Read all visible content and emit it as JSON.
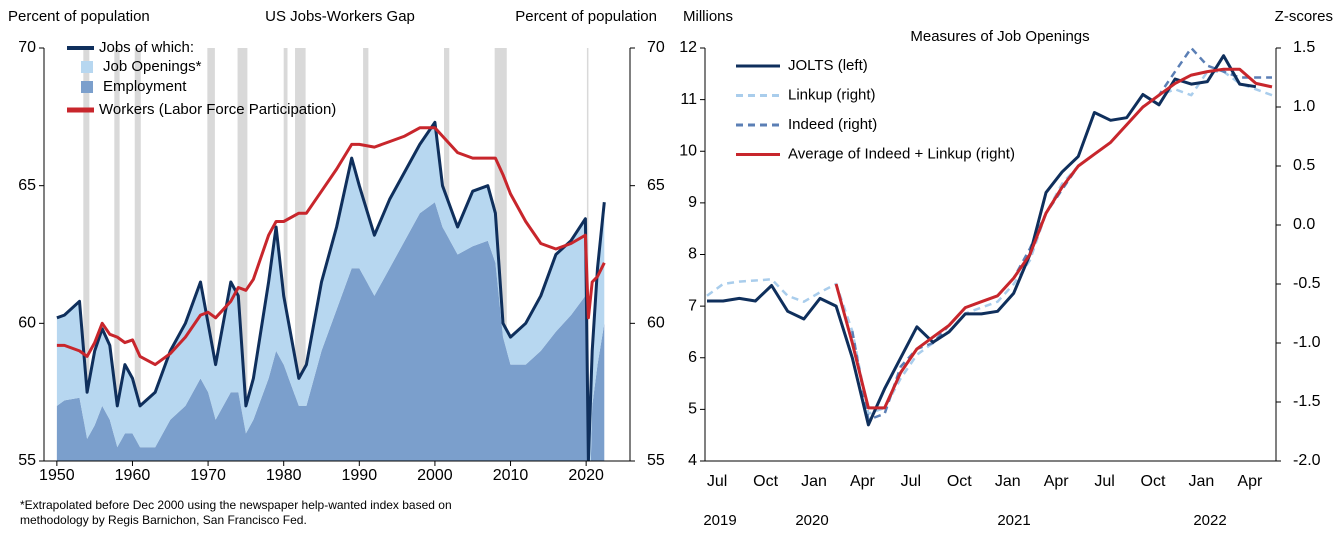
{
  "chart_data": [
    {
      "type": "area",
      "title": "US Jobs-Workers Gap",
      "ylabel": "Percent of population",
      "y2label": "Percent of population",
      "note": "*Extrapolated before Dec 2000 using the newspaper help-wanted index based on methodology by Regis Barnichon, San Francisco Fed.",
      "xlim": [
        1948.3,
        2025.8
      ],
      "xticks": [
        1950,
        1960,
        1970,
        1980,
        1990,
        2000,
        2010,
        2020
      ],
      "ylim": [
        55,
        70
      ],
      "yticks": [
        55,
        60,
        65,
        70
      ],
      "y2lim": [
        55,
        70
      ],
      "y2ticks": [
        55,
        60,
        65,
        70
      ],
      "recession_color": "#d9d9d9",
      "recessions": [
        [
          1953.5,
          1954.3
        ],
        [
          1957.6,
          1958.3
        ],
        [
          1960.3,
          1961.1
        ],
        [
          1969.9,
          1970.9
        ],
        [
          1973.9,
          1975.2
        ],
        [
          1980.0,
          1980.5
        ],
        [
          1981.5,
          1982.9
        ],
        [
          1990.5,
          1991.2
        ],
        [
          2001.2,
          2001.9
        ],
        [
          2007.9,
          2009.5
        ],
        [
          2020.1,
          2020.3
        ]
      ],
      "x": [
        1950,
        1951,
        1953,
        1954,
        1955,
        1956,
        1957,
        1958,
        1959,
        1960,
        1961,
        1963,
        1965,
        1967,
        1969,
        1970,
        1971,
        1973,
        1974,
        1975,
        1976,
        1978,
        1979,
        1980,
        1982,
        1983,
        1985,
        1987,
        1989,
        1990,
        1992,
        1994,
        1996,
        1998,
        2000,
        2001,
        2003,
        2005,
        2007,
        2008,
        2009,
        2010,
        2012,
        2014,
        2016,
        2018,
        2019.9,
        2020.3,
        2020.8,
        2021.5,
        2022.4
      ],
      "series": [
        {
          "name": "Employment",
          "kind": "area",
          "color": "#7b9fcc",
          "values": [
            57,
            57.2,
            57.3,
            55.8,
            56.3,
            57,
            56.5,
            55.5,
            56,
            56,
            55.5,
            55.5,
            56.5,
            57,
            58,
            57.5,
            56.5,
            57.5,
            57.5,
            56,
            56.5,
            58,
            59,
            58.5,
            57,
            57,
            59,
            60.5,
            62,
            62,
            61,
            62,
            63,
            64,
            64.4,
            63.5,
            62.5,
            62.8,
            63,
            62.2,
            59.5,
            58.5,
            58.5,
            59,
            59.7,
            60.3,
            61,
            51.5,
            57,
            58.5,
            60
          ]
        },
        {
          "name": "Job Openings*",
          "kind": "stacked-area",
          "color": "#b7d7f0",
          "values": [
            3.2,
            3.1,
            3.5,
            1.7,
            2.7,
            2.8,
            2.7,
            1.5,
            2.5,
            2.0,
            1.5,
            2.0,
            2.5,
            3.0,
            3.5,
            2.5,
            2.0,
            4.0,
            3.5,
            1.0,
            1.5,
            3.5,
            4.5,
            2.5,
            1.0,
            1.5,
            2.5,
            3.0,
            4.0,
            3.0,
            2.2,
            2.5,
            2.5,
            2.5,
            2.9,
            1.5,
            1.0,
            2.0,
            2.0,
            1.8,
            0.5,
            1.0,
            1.5,
            2.0,
            2.8,
            2.7,
            2.8,
            3.5,
            2.0,
            3.5,
            4.4
          ]
        },
        {
          "name": "Jobs of which:",
          "kind": "line",
          "color": "#0f2f5c",
          "values": [
            60.2,
            60.3,
            60.8,
            57.5,
            59,
            59.8,
            59.2,
            57,
            58.5,
            58,
            57,
            57.5,
            59,
            60,
            61.5,
            60,
            58.5,
            61.5,
            61,
            57,
            58,
            61.5,
            63.5,
            61,
            58,
            58.5,
            61.5,
            63.5,
            66,
            65,
            63.2,
            64.5,
            65.5,
            66.5,
            67.3,
            65,
            63.5,
            64.8,
            65,
            64,
            60,
            59.5,
            60,
            61,
            62.5,
            63,
            63.8,
            55,
            59,
            62,
            64.4
          ]
        },
        {
          "name": "Workers (Labor Force Participation)",
          "kind": "line",
          "color": "#c8262c",
          "values": [
            59.2,
            59.2,
            59,
            58.8,
            59.3,
            60,
            59.6,
            59.5,
            59.3,
            59.4,
            58.8,
            58.5,
            58.9,
            59.5,
            60.3,
            60.4,
            60.2,
            60.8,
            61.3,
            61.2,
            61.6,
            63.2,
            63.7,
            63.7,
            64,
            64,
            64.8,
            65.6,
            66.5,
            66.5,
            66.4,
            66.6,
            66.8,
            67.1,
            67.1,
            66.8,
            66.2,
            66,
            66,
            66,
            65.4,
            64.7,
            63.7,
            62.9,
            62.7,
            62.9,
            63.2,
            60.2,
            61.5,
            61.7,
            62.2
          ]
        }
      ]
    },
    {
      "type": "line",
      "title": "Measures of Job Openings",
      "ylabel": "Millions",
      "y2label": "Z-scores",
      "year_labels": [
        "2019",
        "2020",
        "2021",
        "2022"
      ],
      "categories": [
        null,
        "Jul",
        null,
        null,
        "Oct",
        null,
        null,
        "Jan",
        null,
        null,
        "Apr",
        null,
        null,
        "Jul",
        null,
        null,
        "Oct",
        null,
        null,
        "Jan",
        null,
        null,
        "Apr",
        null,
        null,
        "Jul",
        null,
        null,
        "Oct",
        null,
        null,
        "Jan",
        null,
        null,
        "Apr",
        null
      ],
      "ylim": [
        4,
        12
      ],
      "yticks": [
        4,
        5,
        6,
        7,
        8,
        9,
        10,
        11,
        12
      ],
      "y2lim": [
        -2,
        1.5
      ],
      "y2ticks": [
        {
          "value": -2,
          "label": "-2.0"
        },
        -1.5,
        {
          "value": -1,
          "label": "-1.0"
        },
        -0.5,
        {
          "value": 0,
          "label": "0.0"
        },
        0.5,
        {
          "value": 1,
          "label": "1.0"
        },
        1.5
      ],
      "series": [
        {
          "name": "JOLTS (left)",
          "color": "#0f2f5c",
          "dash": "solid",
          "values": [
            7.1,
            7.1,
            7.15,
            7.1,
            7.4,
            6.9,
            6.75,
            7.15,
            7.0,
            6.0,
            4.7,
            5.4,
            6.0,
            6.6,
            6.3,
            6.5,
            6.85,
            6.85,
            6.9,
            7.25,
            8.0,
            9.2,
            9.6,
            9.9,
            10.75,
            10.6,
            10.65,
            11.1,
            10.9,
            11.4,
            11.3,
            11.35,
            11.85,
            11.3,
            11.25,
            null
          ]
        },
        {
          "name": "Linkup (right)",
          "color": "#a9cdec",
          "dash": "dashed",
          "axis": "y2",
          "values": [
            -0.6,
            -0.5,
            -0.48,
            -0.47,
            -0.46,
            -0.6,
            -0.65,
            -0.57,
            -0.5,
            -0.9,
            -1.6,
            -1.55,
            -1.3,
            -1.1,
            -1.0,
            -0.9,
            -0.75,
            -0.7,
            -0.65,
            -0.5,
            -0.3,
            0.1,
            0.35,
            0.5,
            0.6,
            0.7,
            0.85,
            1.0,
            1.1,
            1.15,
            1.1,
            1.3,
            1.3,
            1.2,
            1.15,
            1.1
          ]
        },
        {
          "name": "Indeed (right)",
          "color": "#5b7fb5",
          "dash": "dashed",
          "axis": "y2",
          "values": [
            null,
            null,
            null,
            null,
            null,
            null,
            null,
            null,
            null,
            -0.9,
            -1.65,
            -1.6,
            -1.2,
            -1.05,
            -1.0,
            -0.85,
            -0.7,
            -0.65,
            -0.6,
            -0.45,
            -0.2,
            0.1,
            0.3,
            0.5,
            0.6,
            0.7,
            0.85,
            1.0,
            1.1,
            1.3,
            1.5,
            1.35,
            1.3,
            1.25,
            1.25,
            1.25
          ]
        },
        {
          "name": "Average of Indeed + Linkup (right)",
          "color": "#c8262c",
          "dash": "solid",
          "axis": "y2",
          "values": [
            null,
            null,
            null,
            null,
            null,
            null,
            null,
            null,
            -0.5,
            -1.0,
            -1.55,
            -1.55,
            -1.25,
            -1.05,
            -0.95,
            -0.85,
            -0.7,
            -0.65,
            -0.6,
            -0.45,
            -0.25,
            0.1,
            0.32,
            0.5,
            0.6,
            0.7,
            0.85,
            1.0,
            1.1,
            1.2,
            1.27,
            1.3,
            1.32,
            1.32,
            1.2,
            1.17
          ]
        }
      ]
    }
  ]
}
